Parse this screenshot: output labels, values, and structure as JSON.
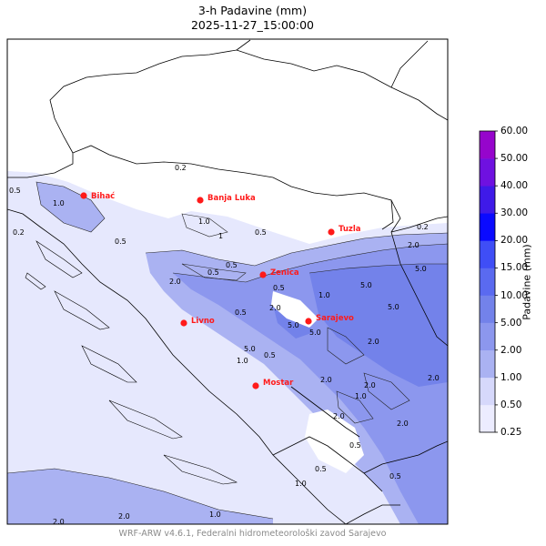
{
  "title": {
    "line1": "3-h Padavine (mm)",
    "line2": "2025-11-27_15:00:00"
  },
  "footer": "WRF-ARW v4.6.1, Federalni hidrometeorološki zavod Sarajevo",
  "colorbar": {
    "label": "Padavine (mm)",
    "levels": [
      "0.25",
      "0.50",
      "1.00",
      "2.00",
      "5.00",
      "10.00",
      "15.00",
      "20.00",
      "30.00",
      "40.00",
      "50.00",
      "60.00"
    ],
    "colors": [
      "#ececff",
      "#d6d8fb",
      "#aab2f2",
      "#8c97ee",
      "#7382ea",
      "#5a6af0",
      "#3f4ef6",
      "#0a0aff",
      "#3f1ae8",
      "#6f11e0",
      "#9605cc"
    ]
  },
  "cities": [
    {
      "name": "Bihać"
    },
    {
      "name": "Banja Luka"
    },
    {
      "name": "Tuzla"
    },
    {
      "name": "Zenica"
    },
    {
      "name": "Sarajevo"
    },
    {
      "name": "Livno"
    },
    {
      "name": "Mostar"
    }
  ],
  "contour_labels": [
    "0.2",
    "0.5",
    "1.0",
    "1",
    "0.5",
    "0.5",
    "0.2",
    "2.0",
    "1.0",
    "0.5",
    "2.0",
    "0.5",
    "0.5",
    "5.0",
    "2.0",
    "1.0",
    "5.0",
    "5.0",
    "5.0",
    "0.5",
    "2.0",
    "5.0",
    "2.0",
    "0.5",
    "1.0",
    "2.0",
    "2.0",
    "1.0",
    "0.5",
    "2.0",
    "0.5",
    "1.0",
    "2.0",
    "0.5",
    "2.0",
    "2.0",
    "5.0",
    "0.2",
    "1.0"
  ]
}
